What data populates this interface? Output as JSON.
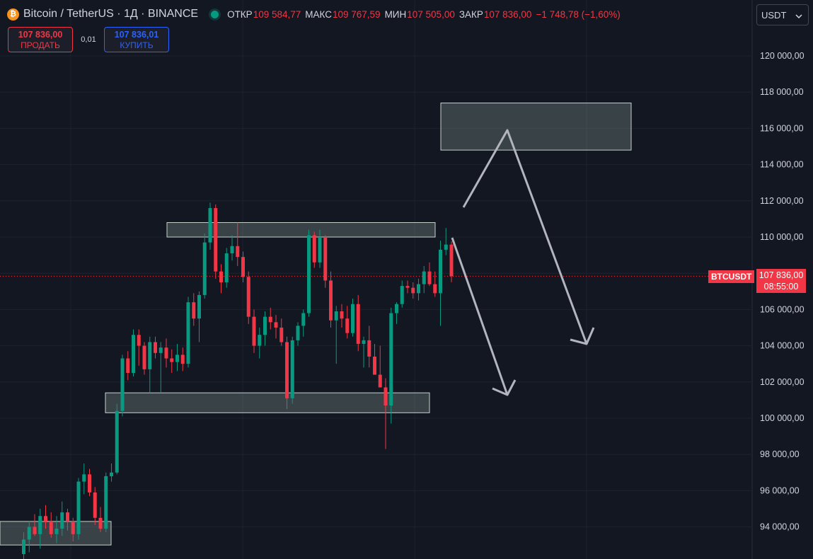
{
  "header": {
    "coin_icon": "bitcoin-icon",
    "symbol_title": "Bitcoin / TetherUS · 1Д · BINANCE",
    "status": "market-open-dot",
    "ohlc": {
      "open_label": "ОТКР",
      "open": "109 584,77",
      "high_label": "МАКС",
      "high": "109 767,59",
      "low_label": "МИН",
      "low": "107 505,00",
      "close_label": "ЗАКР",
      "close": "107 836,00",
      "change": "−1 748,78 (−1,60%)"
    }
  },
  "trade": {
    "sell_price": "107 836,00",
    "sell_label": "ПРОДАТЬ",
    "spread": "0,01",
    "buy_price": "107 836,01",
    "buy_label": "КУПИТЬ"
  },
  "currency_select": {
    "value": "USDT",
    "icon": "chevron-down-icon"
  },
  "colors": {
    "up": "#089981",
    "down": "#f23645",
    "background": "#131722",
    "zone": "#9ab5a8",
    "arrow": "#b2b5be"
  },
  "price_line": {
    "symbol": "BTCUSDT",
    "price": "107 836,00",
    "countdown": "08:55:00"
  },
  "chart_data": {
    "type": "candlestick",
    "timeframe": "1D",
    "y_ticks": [
      94000,
      96000,
      98000,
      100000,
      102000,
      104000,
      106000,
      108000,
      110000,
      112000,
      114000,
      116000,
      118000,
      120000
    ],
    "y_tick_labels": [
      "94 000,00",
      "96 000,00",
      "98 000,00",
      "100 000,00",
      "102 000,00",
      "104 000,00",
      "106 000,00",
      "",
      "110 000,00",
      "112 000,00",
      "114 000,00",
      "116 000,00",
      "118 000,00",
      "120 000,00"
    ],
    "ylim": [
      92000,
      122500
    ],
    "last_price": 107836,
    "candles": [
      {
        "o": 92500,
        "h": 93700,
        "l": 91800,
        "c": 93300
      },
      {
        "o": 93300,
        "h": 94300,
        "l": 92600,
        "c": 94000
      },
      {
        "o": 94000,
        "h": 94700,
        "l": 93500,
        "c": 93600
      },
      {
        "o": 93600,
        "h": 95000,
        "l": 92800,
        "c": 94600
      },
      {
        "o": 94600,
        "h": 95200,
        "l": 93900,
        "c": 94300
      },
      {
        "o": 94300,
        "h": 94800,
        "l": 93400,
        "c": 93600
      },
      {
        "o": 93600,
        "h": 94600,
        "l": 93100,
        "c": 93900
      },
      {
        "o": 93900,
        "h": 95400,
        "l": 93500,
        "c": 94800
      },
      {
        "o": 94800,
        "h": 95000,
        "l": 93800,
        "c": 94300
      },
      {
        "o": 94300,
        "h": 94500,
        "l": 93200,
        "c": 93600
      },
      {
        "o": 93600,
        "h": 96700,
        "l": 93300,
        "c": 96500
      },
      {
        "o": 96500,
        "h": 97500,
        "l": 95800,
        "c": 96900
      },
      {
        "o": 96900,
        "h": 97200,
        "l": 95700,
        "c": 95900
      },
      {
        "o": 95900,
        "h": 96200,
        "l": 94100,
        "c": 94500
      },
      {
        "o": 94500,
        "h": 95100,
        "l": 93700,
        "c": 93900
      },
      {
        "o": 93900,
        "h": 97000,
        "l": 93700,
        "c": 96800
      },
      {
        "o": 96800,
        "h": 97500,
        "l": 96500,
        "c": 97000
      },
      {
        "o": 97000,
        "h": 100800,
        "l": 96900,
        "c": 100400
      },
      {
        "o": 100400,
        "h": 103500,
        "l": 100100,
        "c": 103300
      },
      {
        "o": 103300,
        "h": 103700,
        "l": 102100,
        "c": 102500
      },
      {
        "o": 102500,
        "h": 104900,
        "l": 102300,
        "c": 104600
      },
      {
        "o": 104600,
        "h": 104900,
        "l": 102900,
        "c": 104000
      },
      {
        "o": 104000,
        "h": 104200,
        "l": 102400,
        "c": 102700
      },
      {
        "o": 102700,
        "h": 104500,
        "l": 101400,
        "c": 104200
      },
      {
        "o": 104200,
        "h": 104500,
        "l": 103300,
        "c": 103600
      },
      {
        "o": 103600,
        "h": 104200,
        "l": 101400,
        "c": 103900
      },
      {
        "o": 103900,
        "h": 104400,
        "l": 102800,
        "c": 103300
      },
      {
        "o": 103300,
        "h": 103800,
        "l": 102500,
        "c": 103100
      },
      {
        "o": 103100,
        "h": 104100,
        "l": 102600,
        "c": 103500
      },
      {
        "o": 103500,
        "h": 103900,
        "l": 102600,
        "c": 103000
      },
      {
        "o": 103000,
        "h": 106700,
        "l": 102800,
        "c": 106400
      },
      {
        "o": 106400,
        "h": 106900,
        "l": 105100,
        "c": 105500
      },
      {
        "o": 105500,
        "h": 107000,
        "l": 104200,
        "c": 106800
      },
      {
        "o": 106800,
        "h": 110200,
        "l": 106600,
        "c": 109700
      },
      {
        "o": 109700,
        "h": 111900,
        "l": 109300,
        "c": 111600
      },
      {
        "o": 111600,
        "h": 111800,
        "l": 107700,
        "c": 108100
      },
      {
        "o": 108100,
        "h": 108500,
        "l": 106900,
        "c": 107500
      },
      {
        "o": 107500,
        "h": 109400,
        "l": 107200,
        "c": 109100
      },
      {
        "o": 109100,
        "h": 110100,
        "l": 108700,
        "c": 109500
      },
      {
        "o": 109500,
        "h": 110800,
        "l": 108400,
        "c": 108900
      },
      {
        "o": 108900,
        "h": 109200,
        "l": 107500,
        "c": 107800
      },
      {
        "o": 107800,
        "h": 108100,
        "l": 105200,
        "c": 105600
      },
      {
        "o": 105600,
        "h": 106000,
        "l": 103600,
        "c": 104000
      },
      {
        "o": 104000,
        "h": 105000,
        "l": 103300,
        "c": 104600
      },
      {
        "o": 104600,
        "h": 105900,
        "l": 104000,
        "c": 105600
      },
      {
        "o": 105600,
        "h": 106100,
        "l": 104900,
        "c": 105300
      },
      {
        "o": 105300,
        "h": 105700,
        "l": 104400,
        "c": 105000
      },
      {
        "o": 105000,
        "h": 105500,
        "l": 104000,
        "c": 104200
      },
      {
        "o": 104200,
        "h": 104500,
        "l": 100500,
        "c": 101100
      },
      {
        "o": 101100,
        "h": 104500,
        "l": 100800,
        "c": 104300
      },
      {
        "o": 104300,
        "h": 105300,
        "l": 104000,
        "c": 105100
      },
      {
        "o": 105100,
        "h": 106000,
        "l": 104500,
        "c": 105800
      },
      {
        "o": 105800,
        "h": 110400,
        "l": 105600,
        "c": 110100
      },
      {
        "o": 110100,
        "h": 110300,
        "l": 108300,
        "c": 108600
      },
      {
        "o": 108600,
        "h": 110400,
        "l": 108300,
        "c": 110000
      },
      {
        "o": 110000,
        "h": 110100,
        "l": 107200,
        "c": 107600
      },
      {
        "o": 107600,
        "h": 108100,
        "l": 105000,
        "c": 105400
      },
      {
        "o": 105400,
        "h": 106200,
        "l": 103000,
        "c": 105900
      },
      {
        "o": 105900,
        "h": 106300,
        "l": 105000,
        "c": 105500
      },
      {
        "o": 105500,
        "h": 106200,
        "l": 104400,
        "c": 104700
      },
      {
        "o": 104700,
        "h": 106600,
        "l": 104500,
        "c": 106300
      },
      {
        "o": 106300,
        "h": 106800,
        "l": 103700,
        "c": 104100
      },
      {
        "o": 104100,
        "h": 104500,
        "l": 102800,
        "c": 104300
      },
      {
        "o": 104300,
        "h": 105100,
        "l": 102800,
        "c": 103400
      },
      {
        "o": 103400,
        "h": 104100,
        "l": 102400,
        "c": 102400
      },
      {
        "o": 102400,
        "h": 104000,
        "l": 101700,
        "c": 101700
      },
      {
        "o": 101700,
        "h": 102200,
        "l": 98300,
        "c": 100700
      },
      {
        "o": 100700,
        "h": 106100,
        "l": 99700,
        "c": 105800
      },
      {
        "o": 105800,
        "h": 106400,
        "l": 105200,
        "c": 106300
      },
      {
        "o": 106300,
        "h": 107600,
        "l": 106100,
        "c": 107300
      },
      {
        "o": 107300,
        "h": 107600,
        "l": 106900,
        "c": 107200
      },
      {
        "o": 107200,
        "h": 107500,
        "l": 106600,
        "c": 106900
      },
      {
        "o": 106900,
        "h": 107700,
        "l": 106500,
        "c": 107400
      },
      {
        "o": 107400,
        "h": 108400,
        "l": 106900,
        "c": 108100
      },
      {
        "o": 108100,
        "h": 108600,
        "l": 107300,
        "c": 107400
      },
      {
        "o": 107400,
        "h": 108100,
        "l": 106700,
        "c": 106900
      },
      {
        "o": 106900,
        "h": 109800,
        "l": 105100,
        "c": 109300
      },
      {
        "o": 109300,
        "h": 110500,
        "l": 109000,
        "c": 109585
      },
      {
        "o": 109585,
        "h": 109768,
        "l": 107505,
        "c": 107836
      }
    ],
    "zones": [
      {
        "name": "resistance-zone",
        "y_low": 110000,
        "y_high": 110800
      },
      {
        "name": "support-zone",
        "y_low": 100300,
        "y_high": 101400
      },
      {
        "name": "target-zone",
        "y_low": 114800,
        "y_high": 117400
      },
      {
        "name": "base-zone",
        "y_low": 93000,
        "y_high": 94300
      }
    ]
  }
}
